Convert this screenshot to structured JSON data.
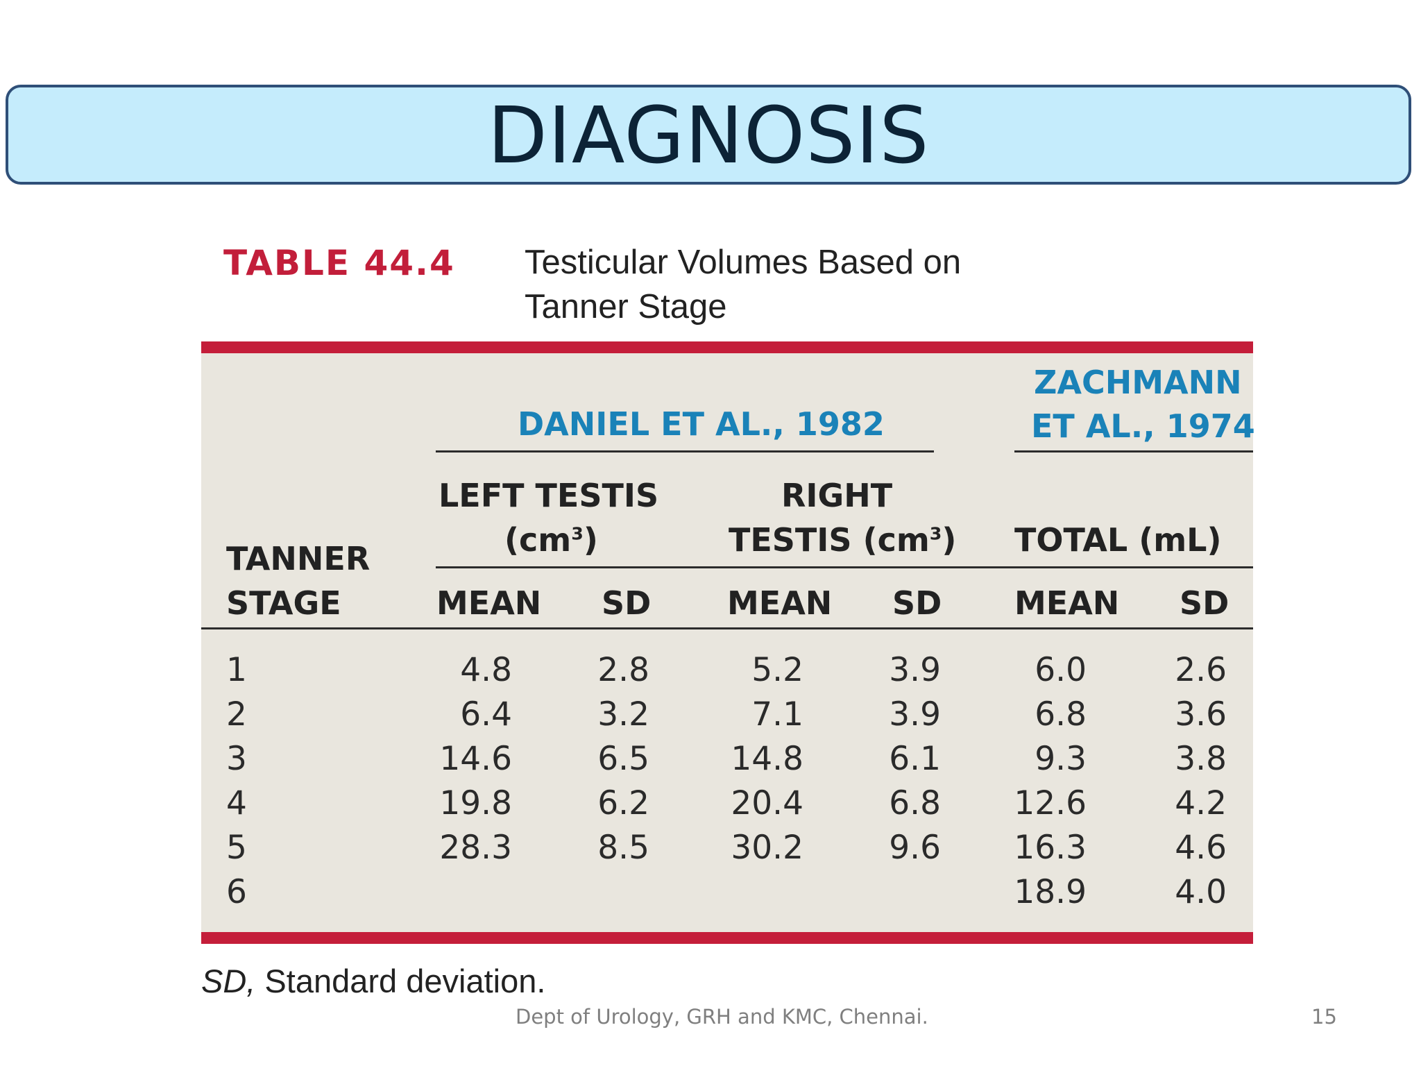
{
  "slide": {
    "title": "DIAGNOSIS",
    "footer": "Dept of Urology, GRH and KMC, Chennai.",
    "page_number": "15"
  },
  "table": {
    "label": "TABLE 44.4",
    "caption_line1": "Testicular Volumes Based on",
    "caption_line2": "Tanner Stage",
    "groups": {
      "daniel": "DANIEL ET AL., 1982",
      "zachmann_line1": "ZACHMANN",
      "zachmann_line2": "ET AL., 1974"
    },
    "subgroups": {
      "left_line1": "LEFT TESTIS",
      "left_line2_prefix": "(cm",
      "left_line2_sup": "3",
      "left_line2_suffix": ")",
      "right_line1": "RIGHT",
      "right_line2_prefix": "TESTIS (cm",
      "right_line2_sup": "3",
      "right_line2_suffix": ")",
      "total": "TOTAL (mL)"
    },
    "stage_header_line1": "TANNER",
    "stage_header_line2": "STAGE",
    "columns": [
      "MEAN",
      "SD",
      "MEAN",
      "SD",
      "MEAN",
      "SD"
    ],
    "rows": [
      {
        "stage": "1",
        "values": [
          "4.8",
          "2.8",
          "5.2",
          "3.9",
          "6.0",
          "2.6"
        ]
      },
      {
        "stage": "2",
        "values": [
          "6.4",
          "3.2",
          "7.1",
          "3.9",
          "6.8",
          "3.6"
        ]
      },
      {
        "stage": "3",
        "values": [
          "14.6",
          "6.5",
          "14.8",
          "6.1",
          "9.3",
          "3.8"
        ]
      },
      {
        "stage": "4",
        "values": [
          "19.8",
          "6.2",
          "20.4",
          "6.8",
          "12.6",
          "4.2"
        ]
      },
      {
        "stage": "5",
        "values": [
          "28.3",
          "8.5",
          "30.2",
          "9.6",
          "16.3",
          "4.6"
        ]
      },
      {
        "stage": "6",
        "values": [
          "",
          "",
          "",
          "",
          "18.9",
          "4.0"
        ]
      }
    ],
    "footnote_abbr": "SD,",
    "footnote_text": " Standard deviation."
  },
  "colors": {
    "title_fill": "#c5ecfc",
    "title_border": "#2f4f78",
    "table_red": "#c41e3a",
    "group_blue": "#1a82b8",
    "table_background": "#e9e6de"
  }
}
